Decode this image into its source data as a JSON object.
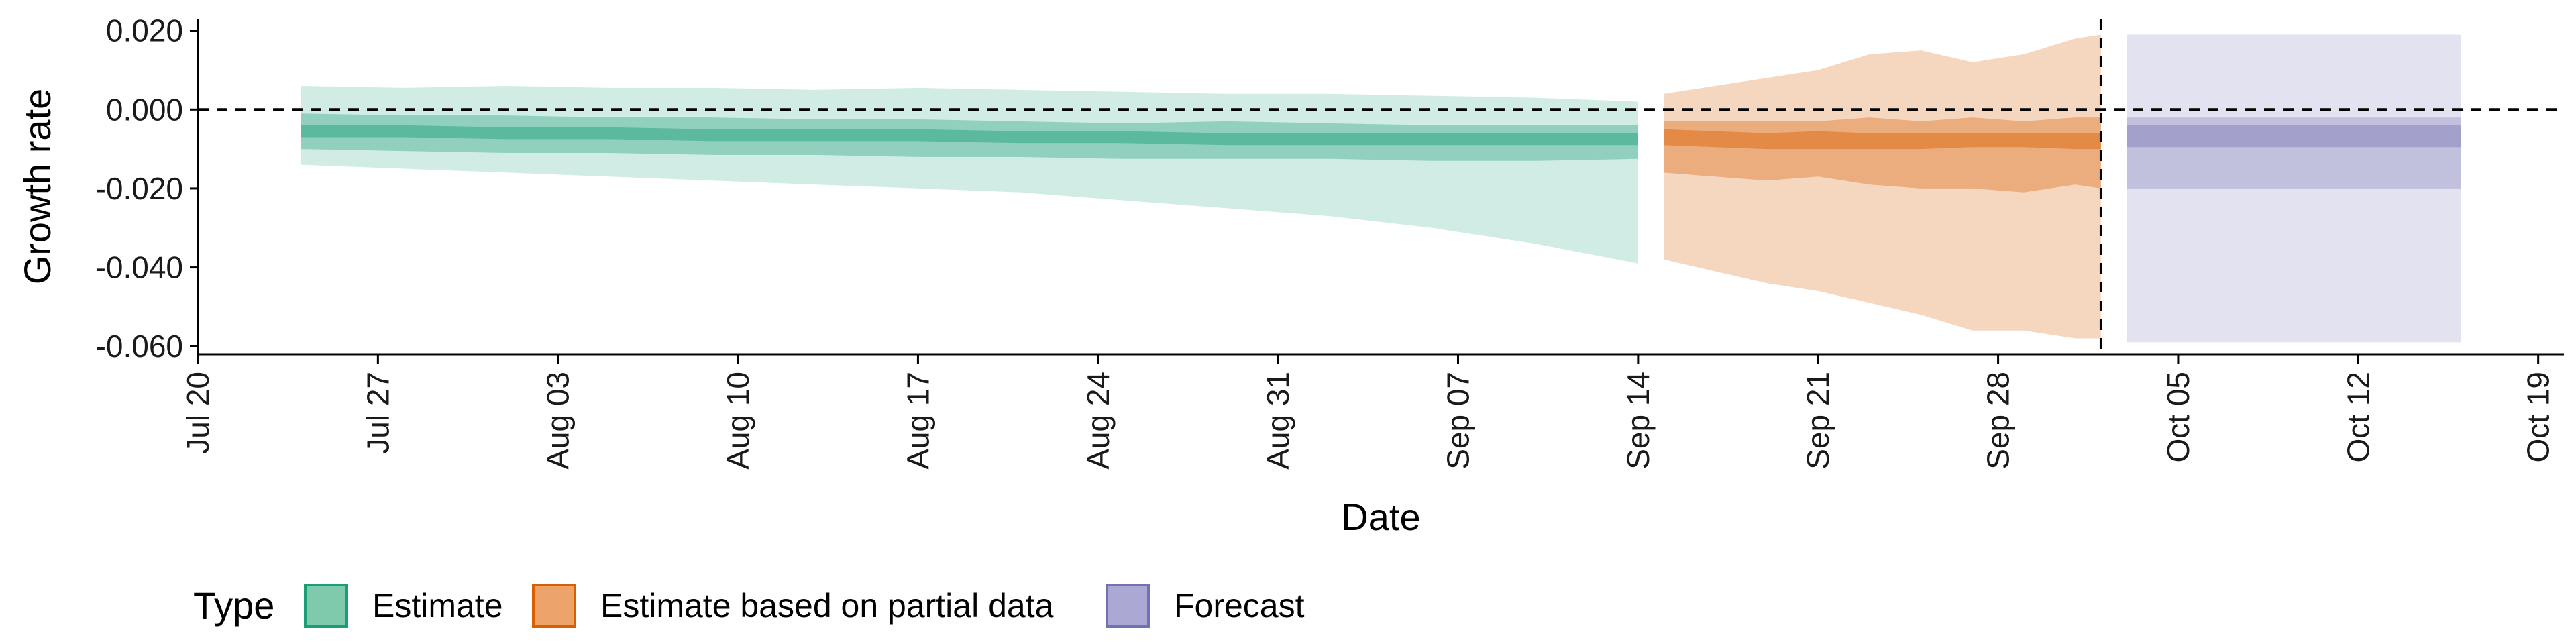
{
  "chart_data": {
    "type": "area",
    "title": "",
    "xlabel": "Date",
    "ylabel": "Growth rate",
    "x_date_range": [
      "2020-07-20",
      "2020-10-20"
    ],
    "ylim": [
      -0.062,
      0.023
    ],
    "x_ticks": [
      {
        "date": "2020-07-20",
        "label": "Jul 20"
      },
      {
        "date": "2020-07-27",
        "label": "Jul 27"
      },
      {
        "date": "2020-08-03",
        "label": "Aug 03"
      },
      {
        "date": "2020-08-10",
        "label": "Aug 10"
      },
      {
        "date": "2020-08-17",
        "label": "Aug 17"
      },
      {
        "date": "2020-08-24",
        "label": "Aug 24"
      },
      {
        "date": "2020-08-31",
        "label": "Aug 31"
      },
      {
        "date": "2020-09-07",
        "label": "Sep 07"
      },
      {
        "date": "2020-09-14",
        "label": "Sep 14"
      },
      {
        "date": "2020-09-21",
        "label": "Sep 21"
      },
      {
        "date": "2020-09-28",
        "label": "Sep 28"
      },
      {
        "date": "2020-10-05",
        "label": "Oct 05"
      },
      {
        "date": "2020-10-12",
        "label": "Oct 12"
      },
      {
        "date": "2020-10-19",
        "label": "Oct 19"
      }
    ],
    "y_ticks": [
      {
        "value": 0.02,
        "label": "0.020"
      },
      {
        "value": 0.0,
        "label": "0.000"
      },
      {
        "value": -0.02,
        "label": "-0.020"
      },
      {
        "value": -0.04,
        "label": "-0.040"
      },
      {
        "value": -0.06,
        "label": "-0.060"
      }
    ],
    "reference_lines": [
      {
        "axis": "y",
        "value": 0.0,
        "style": "dashed"
      },
      {
        "axis": "x",
        "date": "2020-10-02",
        "style": "dashed"
      }
    ],
    "grid": false,
    "legend": {
      "title": "Type",
      "position": "bottom-left",
      "entries": [
        {
          "label": "Estimate",
          "fill": "#7fc9ad",
          "stroke": "#1b9e77"
        },
        {
          "label": "Estimate based on partial data",
          "fill": "#eca46b",
          "stroke": "#d95f02"
        },
        {
          "label": "Forecast",
          "fill": "#aba8d3",
          "stroke": "#7570b3"
        }
      ]
    },
    "series": [
      {
        "name": "Estimate",
        "color": "#1b9e77",
        "band_opacities": [
          0.2,
          0.35,
          0.45
        ],
        "x": [
          "2020-07-24",
          "2020-07-28",
          "2020-08-01",
          "2020-08-05",
          "2020-08-09",
          "2020-08-13",
          "2020-08-17",
          "2020-08-21",
          "2020-08-25",
          "2020-08-29",
          "2020-09-02",
          "2020-09-06",
          "2020-09-10",
          "2020-09-14"
        ],
        "outer_upper": [
          0.006,
          0.0055,
          0.006,
          0.0055,
          0.0055,
          0.005,
          0.0055,
          0.005,
          0.0045,
          0.004,
          0.004,
          0.0035,
          0.003,
          0.002
        ],
        "mid_upper": [
          -0.001,
          -0.0015,
          -0.0015,
          -0.002,
          -0.002,
          -0.0025,
          -0.0025,
          -0.003,
          -0.0035,
          -0.003,
          -0.0035,
          -0.004,
          -0.004,
          -0.004
        ],
        "inner_upper": [
          -0.004,
          -0.004,
          -0.0045,
          -0.0045,
          -0.005,
          -0.005,
          -0.005,
          -0.0055,
          -0.0055,
          -0.006,
          -0.006,
          -0.006,
          -0.006,
          -0.006
        ],
        "inner_lower": [
          -0.007,
          -0.007,
          -0.0075,
          -0.0075,
          -0.008,
          -0.008,
          -0.008,
          -0.0085,
          -0.0085,
          -0.009,
          -0.009,
          -0.009,
          -0.009,
          -0.009
        ],
        "mid_lower": [
          -0.01,
          -0.0105,
          -0.011,
          -0.011,
          -0.0115,
          -0.0115,
          -0.012,
          -0.012,
          -0.0125,
          -0.0125,
          -0.0125,
          -0.013,
          -0.013,
          -0.0125
        ],
        "outer_lower": [
          -0.014,
          -0.015,
          -0.016,
          -0.017,
          -0.018,
          -0.019,
          -0.02,
          -0.021,
          -0.023,
          -0.025,
          -0.027,
          -0.03,
          -0.034,
          -0.039
        ]
      },
      {
        "name": "Estimate based on partial data",
        "color": "#d95f02",
        "band_opacities": [
          0.25,
          0.35,
          0.45
        ],
        "x": [
          "2020-09-15",
          "2020-09-17",
          "2020-09-19",
          "2020-09-21",
          "2020-09-23",
          "2020-09-25",
          "2020-09-27",
          "2020-09-29",
          "2020-10-01",
          "2020-10-02"
        ],
        "outer_upper": [
          0.004,
          0.006,
          0.008,
          0.01,
          0.014,
          0.015,
          0.012,
          0.014,
          0.018,
          0.019
        ],
        "mid_upper": [
          -0.003,
          -0.003,
          -0.003,
          -0.003,
          -0.002,
          -0.003,
          -0.002,
          -0.003,
          -0.002,
          -0.002
        ],
        "inner_upper": [
          -0.005,
          -0.0055,
          -0.006,
          -0.0055,
          -0.006,
          -0.006,
          -0.006,
          -0.006,
          -0.006,
          -0.006
        ],
        "inner_lower": [
          -0.009,
          -0.0095,
          -0.01,
          -0.01,
          -0.01,
          -0.01,
          -0.0095,
          -0.0095,
          -0.01,
          -0.01
        ],
        "mid_lower": [
          -0.016,
          -0.017,
          -0.018,
          -0.017,
          -0.019,
          -0.02,
          -0.02,
          -0.021,
          -0.019,
          -0.02
        ],
        "outer_lower": [
          -0.038,
          -0.041,
          -0.044,
          -0.046,
          -0.049,
          -0.052,
          -0.056,
          -0.056,
          -0.058,
          -0.058
        ]
      },
      {
        "name": "Forecast",
        "color": "#7570b3",
        "band_opacities": [
          0.2,
          0.3,
          0.4
        ],
        "x": [
          "2020-10-03",
          "2020-10-16"
        ],
        "outer_upper": [
          0.019,
          0.019
        ],
        "mid_upper": [
          -0.002,
          -0.002
        ],
        "inner_upper": [
          -0.004,
          -0.004
        ],
        "inner_lower": [
          -0.0095,
          -0.0095
        ],
        "mid_lower": [
          -0.02,
          -0.02
        ],
        "outer_lower": [
          -0.059,
          -0.059
        ]
      }
    ]
  }
}
